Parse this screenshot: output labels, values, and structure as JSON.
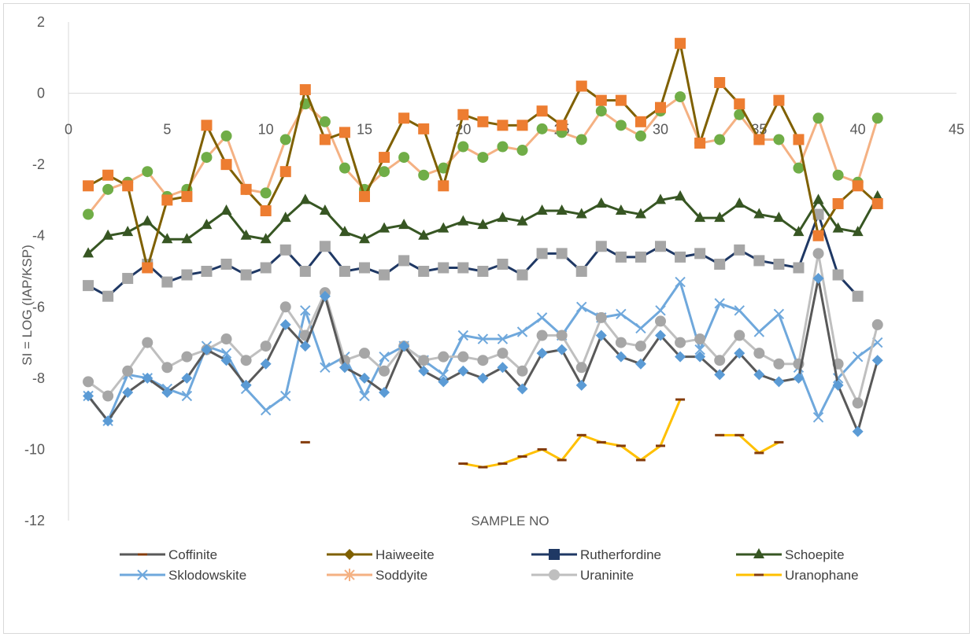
{
  "chart_data": {
    "type": "line",
    "xlabel": "SAMPLE NO",
    "ylabel": "SI = LOG (IAP/KSP)",
    "xlim": [
      0,
      45
    ],
    "ylim": [
      -12,
      2
    ],
    "xticks": [
      "0",
      "5",
      "10",
      "15",
      "20",
      "25",
      "30",
      "35",
      "40",
      "45"
    ],
    "yticks": [
      "2",
      "0",
      "-2",
      "-4",
      "-6",
      "-8",
      "-10",
      "-12"
    ],
    "grid": false,
    "legend_position": "bottom",
    "series": [
      {
        "name": "Coffinite",
        "color": "#595959",
        "marker": "dash",
        "x": [
          1,
          2,
          3,
          4,
          5,
          6,
          7,
          8,
          9,
          10,
          11,
          12,
          13,
          14,
          15,
          16,
          17,
          18,
          19,
          20,
          21,
          22,
          23,
          24,
          25,
          26,
          27,
          28,
          29,
          30,
          31,
          32,
          33,
          34,
          35,
          36,
          37,
          38,
          39,
          40,
          41
        ],
        "y": [
          -8.5,
          -9.2,
          -8.4,
          -8.0,
          -8.4,
          -8.0,
          -7.2,
          -7.5,
          -8.2,
          -7.6,
          -6.5,
          -7.1,
          -5.7,
          -7.7,
          -8.0,
          -8.4,
          -7.1,
          -7.8,
          -8.1,
          -7.8,
          -8.0,
          -7.7,
          -8.3,
          -7.3,
          -7.2,
          -8.2,
          -6.8,
          -7.4,
          -7.6,
          -6.8,
          -7.4,
          -7.4,
          -7.9,
          -7.3,
          -7.9,
          -8.1,
          -8.0,
          -5.2,
          -8.2,
          -9.5,
          -7.5
        ]
      },
      {
        "name": "Haiweeite",
        "color": "#7f6000",
        "marker": "diamond",
        "x": [
          1,
          2,
          3,
          4,
          5,
          6,
          7,
          8,
          9,
          10,
          11,
          12,
          13,
          14,
          15,
          16,
          17,
          18,
          19,
          20,
          21,
          22,
          23,
          24,
          25,
          26,
          27,
          28,
          29,
          30,
          31,
          32,
          33,
          34,
          35,
          36,
          37,
          38,
          39,
          40,
          41
        ],
        "y": [
          -2.6,
          -2.3,
          -2.6,
          -4.9,
          -3.0,
          -2.9,
          -0.9,
          -2.0,
          -2.7,
          -3.3,
          -2.2,
          0.1,
          -1.3,
          -1.1,
          -2.9,
          -1.8,
          -0.7,
          -1.0,
          -2.6,
          -0.6,
          -0.8,
          -0.9,
          -0.9,
          -0.5,
          -0.9,
          0.2,
          -0.2,
          -0.2,
          -0.8,
          -0.4,
          1.4,
          -1.4,
          0.3,
          -0.3,
          -1.3,
          -0.2,
          -1.3,
          -4.0,
          -3.1,
          -2.6,
          -3.1
        ]
      },
      {
        "name": "Rutherfordine",
        "color": "#1f3864",
        "marker": "square",
        "x": [
          1,
          2,
          3,
          4,
          5,
          6,
          7,
          8,
          9,
          10,
          11,
          12,
          13,
          14,
          15,
          16,
          17,
          18,
          19,
          20,
          21,
          22,
          23,
          24,
          25,
          26,
          27,
          28,
          29,
          30,
          31,
          32,
          33,
          34,
          35,
          36,
          37,
          38,
          39,
          40
        ],
        "y": [
          -5.4,
          -5.7,
          -5.2,
          -4.8,
          -5.3,
          -5.1,
          -5.0,
          -4.8,
          -5.1,
          -4.9,
          -4.4,
          -5.0,
          -4.3,
          -5.0,
          -4.9,
          -5.1,
          -4.7,
          -5.0,
          -4.9,
          -4.9,
          -5.0,
          -4.8,
          -5.1,
          -4.5,
          -4.5,
          -5.0,
          -4.3,
          -4.6,
          -4.6,
          -4.3,
          -4.6,
          -4.5,
          -4.8,
          -4.4,
          -4.7,
          -4.8,
          -4.9,
          -3.4,
          -5.1,
          -5.7
        ]
      },
      {
        "name": "Schoepite",
        "color": "#375623",
        "marker": "triangle",
        "x": [
          1,
          2,
          3,
          4,
          5,
          6,
          7,
          8,
          9,
          10,
          11,
          12,
          13,
          14,
          15,
          16,
          17,
          18,
          19,
          20,
          21,
          22,
          23,
          24,
          25,
          26,
          27,
          28,
          29,
          30,
          31,
          32,
          33,
          34,
          35,
          36,
          37,
          38,
          39,
          40,
          41
        ],
        "y": [
          -4.5,
          -4.0,
          -3.9,
          -3.6,
          -4.1,
          -4.1,
          -3.7,
          -3.3,
          -4.0,
          -4.1,
          -3.5,
          -3.0,
          -3.3,
          -3.9,
          -4.1,
          -3.8,
          -3.7,
          -4.0,
          -3.8,
          -3.6,
          -3.7,
          -3.5,
          -3.6,
          -3.3,
          -3.3,
          -3.4,
          -3.1,
          -3.3,
          -3.4,
          -3.0,
          -2.9,
          -3.5,
          -3.5,
          -3.1,
          -3.4,
          -3.5,
          -3.9,
          -3.0,
          -3.8,
          -3.9,
          -2.9
        ]
      },
      {
        "name": "Sklodowskite",
        "color": "#6fa8dc",
        "marker": "x",
        "x": [
          1,
          2,
          3,
          4,
          5,
          6,
          7,
          8,
          9,
          10,
          11,
          12,
          13,
          14,
          15,
          16,
          17,
          18,
          19,
          20,
          21,
          22,
          23,
          24,
          25,
          26,
          27,
          28,
          29,
          30,
          31,
          32,
          33,
          34,
          35,
          36,
          37,
          38,
          39,
          40,
          41
        ],
        "y": [
          -8.5,
          -9.2,
          -7.9,
          -8.0,
          -8.3,
          -8.5,
          -7.1,
          -7.3,
          -8.3,
          -8.9,
          -8.5,
          -6.1,
          -7.7,
          -7.4,
          -8.5,
          -7.4,
          -7.1,
          -7.5,
          -7.9,
          -6.8,
          -6.9,
          -6.9,
          -6.7,
          -6.3,
          -6.8,
          -6.0,
          -6.3,
          -6.2,
          -6.6,
          -6.1,
          -5.3,
          -7.2,
          -5.9,
          -6.1,
          -6.7,
          -6.2,
          -7.7,
          -9.1,
          -8.0,
          -7.4,
          -7.0
        ]
      },
      {
        "name": "Soddyite",
        "color": "#f4b183",
        "marker": "star",
        "x": [
          1,
          2,
          3,
          4,
          5,
          6,
          7,
          8,
          9,
          10,
          11,
          12,
          13,
          14,
          15,
          16,
          17,
          18,
          19,
          20,
          21,
          22,
          23,
          24,
          25,
          26,
          27,
          28,
          29,
          30,
          31,
          32,
          33,
          34,
          35,
          36,
          37,
          38,
          39,
          40,
          41
        ],
        "y": [
          -3.4,
          -2.7,
          -2.5,
          -2.2,
          -2.9,
          -2.7,
          -1.8,
          -1.2,
          -2.7,
          -2.8,
          -1.3,
          -0.3,
          -0.8,
          -2.1,
          -2.7,
          -2.2,
          -1.8,
          -2.3,
          -2.1,
          -1.5,
          -1.8,
          -1.5,
          -1.6,
          -1.0,
          -1.1,
          -1.3,
          -0.5,
          -0.9,
          -1.2,
          -0.5,
          -0.1,
          -1.4,
          -1.3,
          -0.6,
          -1.3,
          -1.3,
          -2.1,
          -0.7,
          -2.3,
          -2.5,
          -0.7
        ]
      },
      {
        "name": "Uraninite",
        "color": "#bfbfbf",
        "marker": "circle",
        "x": [
          1,
          2,
          3,
          4,
          5,
          6,
          7,
          8,
          9,
          10,
          11,
          12,
          13,
          14,
          15,
          16,
          17,
          18,
          19,
          20,
          21,
          22,
          23,
          24,
          25,
          26,
          27,
          28,
          29,
          30,
          31,
          32,
          33,
          34,
          35,
          36,
          37,
          38,
          39,
          40,
          41
        ],
        "y": [
          -8.1,
          -8.5,
          -7.8,
          -7.0,
          -7.7,
          -7.4,
          -7.2,
          -6.9,
          -7.5,
          -7.1,
          -6.0,
          -6.8,
          -5.6,
          -7.5,
          -7.3,
          -7.8,
          -7.1,
          -7.5,
          -7.4,
          -7.4,
          -7.5,
          -7.3,
          -7.8,
          -6.8,
          -6.8,
          -7.7,
          -6.3,
          -7.0,
          -7.1,
          -6.4,
          -7.0,
          -6.9,
          -7.5,
          -6.8,
          -7.3,
          -7.6,
          -7.6,
          -4.5,
          -7.6,
          -8.7,
          -6.5
        ]
      },
      {
        "name": "Uranophane",
        "color": "#ffc000",
        "marker": "dash",
        "x": [
          12,
          20,
          21,
          22,
          23,
          24,
          25,
          26,
          27,
          28,
          29,
          30,
          31,
          33,
          34,
          35,
          36
        ],
        "y": [
          -9.8,
          -10.4,
          -10.5,
          -10.4,
          -10.2,
          -10.0,
          -10.3,
          -9.6,
          -9.8,
          -9.9,
          -10.3,
          -9.9,
          -8.6,
          -9.6,
          -9.6,
          -10.1,
          -9.8
        ],
        "segments": [
          [
            12
          ],
          [
            20,
            21,
            22,
            23,
            24,
            25,
            26,
            27,
            28,
            29,
            30,
            31
          ],
          [
            33,
            34,
            35,
            36
          ]
        ]
      }
    ]
  }
}
